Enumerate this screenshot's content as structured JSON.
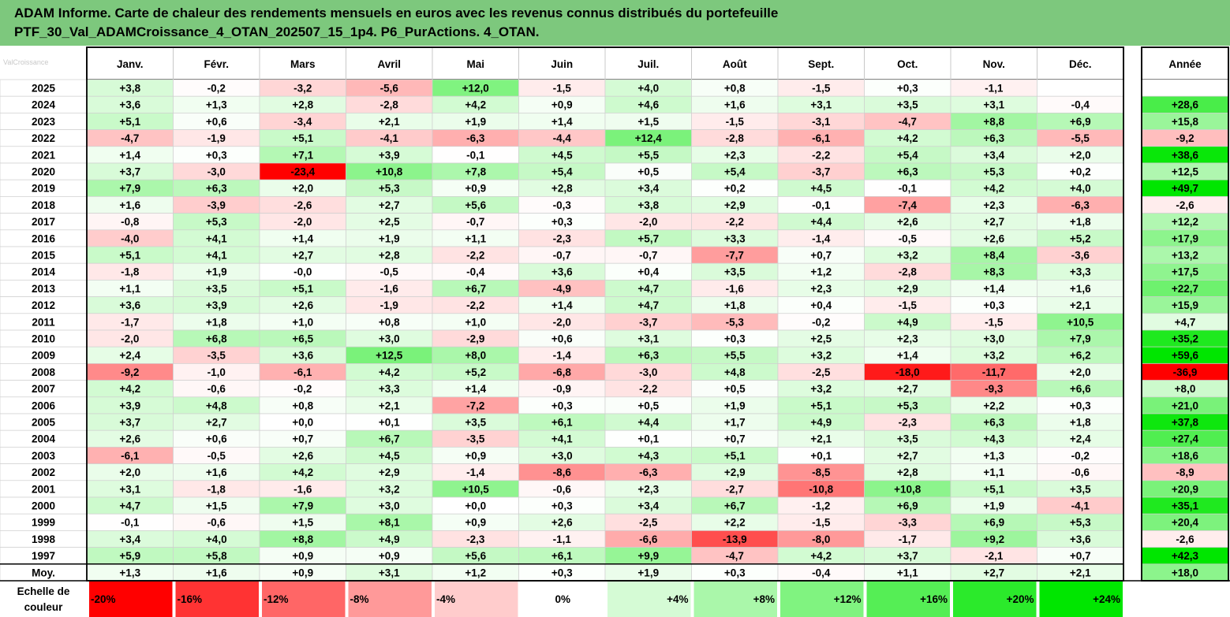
{
  "title": {
    "line1": "ADAM Informe. Carte de chaleur des rendements mensuels en euros avec les revenus connus distribués du portefeuille",
    "line2": "PTF_30_Val_ADAMCroissance_4_OTAN_202507_15_1p4. P6_PurActions. 4_OTAN."
  },
  "watermark": "ValCroissance",
  "colors": {
    "title_bg": "#7dc87d",
    "negative": "#ff0000",
    "positive": "#00e600",
    "neutral": "#ffffff"
  },
  "chart_data": {
    "type": "heatmap",
    "columns": [
      "Janv.",
      "Févr.",
      "Mars",
      "Avril",
      "Mai",
      "Juin",
      "Juil.",
      "Août",
      "Sept.",
      "Oct.",
      "Nov.",
      "Déc."
    ],
    "year_column": "Année",
    "rows": [
      {
        "label": "2025",
        "values": [
          "+3,8",
          "-0,2",
          "-3,2",
          "-5,6",
          "+12,0",
          "-1,5",
          "+4,0",
          "+0,8",
          "-1,5",
          "+0,3",
          "-1,1",
          ""
        ],
        "year": ""
      },
      {
        "label": "2024",
        "values": [
          "+3,6",
          "+1,3",
          "+2,8",
          "-2,8",
          "+4,2",
          "+0,9",
          "+4,6",
          "+1,6",
          "+3,1",
          "+3,5",
          "+3,1",
          "-0,4"
        ],
        "year": "+28,6"
      },
      {
        "label": "2023",
        "values": [
          "+5,1",
          "+0,6",
          "-3,4",
          "+2,1",
          "+1,9",
          "+1,4",
          "+1,5",
          "-1,5",
          "-3,1",
          "-4,7",
          "+8,8",
          "+6,9"
        ],
        "year": "+15,8"
      },
      {
        "label": "2022",
        "values": [
          "-4,7",
          "-1,9",
          "+5,1",
          "-4,1",
          "-6,3",
          "-4,4",
          "+12,4",
          "-2,8",
          "-6,1",
          "+4,2",
          "+6,3",
          "-5,5"
        ],
        "year": "-9,2"
      },
      {
        "label": "2021",
        "values": [
          "+1,4",
          "+0,3",
          "+7,1",
          "+3,9",
          "-0,1",
          "+4,5",
          "+5,5",
          "+2,3",
          "-2,2",
          "+5,4",
          "+3,4",
          "+2,0"
        ],
        "year": "+38,6"
      },
      {
        "label": "2020",
        "values": [
          "+3,7",
          "-3,0",
          "-23,4",
          "+10,8",
          "+7,8",
          "+5,4",
          "+0,5",
          "+5,4",
          "-3,7",
          "+6,3",
          "+5,3",
          "+0,2"
        ],
        "year": "+12,5"
      },
      {
        "label": "2019",
        "values": [
          "+7,9",
          "+6,3",
          "+2,0",
          "+5,3",
          "+0,9",
          "+2,8",
          "+3,4",
          "+0,2",
          "+4,5",
          "-0,1",
          "+4,2",
          "+4,0"
        ],
        "year": "+49,7"
      },
      {
        "label": "2018",
        "values": [
          "+1,6",
          "-3,9",
          "-2,6",
          "+2,7",
          "+5,6",
          "-0,3",
          "+3,8",
          "+2,9",
          "-0,1",
          "-7,4",
          "+2,3",
          "-6,3"
        ],
        "year": "-2,6"
      },
      {
        "label": "2017",
        "values": [
          "-0,8",
          "+5,3",
          "-2,0",
          "+2,5",
          "-0,7",
          "+0,3",
          "-2,0",
          "-2,2",
          "+4,4",
          "+2,6",
          "+2,7",
          "+1,8"
        ],
        "year": "+12,2"
      },
      {
        "label": "2016",
        "values": [
          "-4,0",
          "+4,1",
          "+1,4",
          "+1,9",
          "+1,1",
          "-2,3",
          "+5,7",
          "+3,3",
          "-1,4",
          "-0,5",
          "+2,6",
          "+5,2"
        ],
        "year": "+17,9"
      },
      {
        "label": "2015",
        "values": [
          "+5,1",
          "+4,1",
          "+2,7",
          "+2,8",
          "-2,2",
          "-0,7",
          "-0,7",
          "-7,7",
          "+0,7",
          "+3,2",
          "+8,4",
          "-3,6"
        ],
        "year": "+13,2"
      },
      {
        "label": "2014",
        "values": [
          "-1,8",
          "+1,9",
          "-0,0",
          "-0,5",
          "-0,4",
          "+3,6",
          "+0,4",
          "+3,5",
          "+1,2",
          "-2,8",
          "+8,3",
          "+3,3"
        ],
        "year": "+17,5"
      },
      {
        "label": "2013",
        "values": [
          "+1,1",
          "+3,5",
          "+5,1",
          "-1,6",
          "+6,7",
          "-4,9",
          "+4,7",
          "-1,6",
          "+2,3",
          "+2,9",
          "+1,4",
          "+1,6"
        ],
        "year": "+22,7"
      },
      {
        "label": "2012",
        "values": [
          "+3,6",
          "+3,9",
          "+2,6",
          "-1,9",
          "-2,2",
          "+1,4",
          "+4,7",
          "+1,8",
          "+0,4",
          "-1,5",
          "+0,3",
          "+2,1"
        ],
        "year": "+15,9"
      },
      {
        "label": "2011",
        "values": [
          "-1,7",
          "+1,8",
          "+1,0",
          "+0,8",
          "+1,0",
          "-2,0",
          "-3,7",
          "-5,3",
          "-0,2",
          "+4,9",
          "-1,5",
          "+10,5"
        ],
        "year": "+4,7"
      },
      {
        "label": "2010",
        "values": [
          "-2,0",
          "+6,8",
          "+6,5",
          "+3,0",
          "-2,9",
          "+0,6",
          "+3,1",
          "+0,3",
          "+2,5",
          "+2,3",
          "+3,0",
          "+7,9"
        ],
        "year": "+35,2"
      },
      {
        "label": "2009",
        "values": [
          "+2,4",
          "-3,5",
          "+3,6",
          "+12,5",
          "+8,0",
          "-1,4",
          "+6,3",
          "+5,5",
          "+3,2",
          "+1,4",
          "+3,2",
          "+6,2"
        ],
        "year": "+59,6"
      },
      {
        "label": "2008",
        "values": [
          "-9,2",
          "-1,0",
          "-6,1",
          "+4,2",
          "+5,2",
          "-6,8",
          "-3,0",
          "+4,8",
          "-2,5",
          "-18,0",
          "-11,7",
          "+2,0"
        ],
        "year": "-36,9"
      },
      {
        "label": "2007",
        "values": [
          "+4,2",
          "-0,6",
          "-0,2",
          "+3,3",
          "+1,4",
          "-0,9",
          "-2,2",
          "+0,5",
          "+3,2",
          "+2,7",
          "-9,3",
          "+6,6"
        ],
        "year": "+8,0"
      },
      {
        "label": "2006",
        "values": [
          "+3,9",
          "+4,8",
          "+0,8",
          "+2,1",
          "-7,2",
          "+0,3",
          "+0,5",
          "+1,9",
          "+5,1",
          "+5,3",
          "+2,2",
          "+0,3"
        ],
        "year": "+21,0"
      },
      {
        "label": "2005",
        "values": [
          "+3,7",
          "+2,7",
          "+0,0",
          "+0,1",
          "+3,5",
          "+6,1",
          "+4,4",
          "+1,7",
          "+4,9",
          "-2,3",
          "+6,3",
          "+1,8"
        ],
        "year": "+37,8"
      },
      {
        "label": "2004",
        "values": [
          "+2,6",
          "+0,6",
          "+0,7",
          "+6,7",
          "-3,5",
          "+4,1",
          "+0,1",
          "+0,7",
          "+2,1",
          "+3,5",
          "+4,3",
          "+2,4"
        ],
        "year": "+27,4"
      },
      {
        "label": "2003",
        "values": [
          "-6,1",
          "-0,5",
          "+2,6",
          "+4,5",
          "+0,9",
          "+3,0",
          "+4,3",
          "+5,1",
          "+0,1",
          "+2,7",
          "+1,3",
          "-0,2"
        ],
        "year": "+18,6"
      },
      {
        "label": "2002",
        "values": [
          "+2,0",
          "+1,6",
          "+4,2",
          "+2,9",
          "-1,4",
          "-8,6",
          "-6,3",
          "+2,9",
          "-8,5",
          "+2,8",
          "+1,1",
          "-0,6"
        ],
        "year": "-8,9"
      },
      {
        "label": "2001",
        "values": [
          "+3,1",
          "-1,8",
          "-1,6",
          "+3,2",
          "+10,5",
          "-0,6",
          "+2,3",
          "-2,7",
          "-10,8",
          "+10,8",
          "+5,1",
          "+3,5"
        ],
        "year": "+20,9"
      },
      {
        "label": "2000",
        "values": [
          "+4,7",
          "+1,5",
          "+7,9",
          "+3,0",
          "+0,0",
          "+0,3",
          "+3,4",
          "+6,7",
          "-1,2",
          "+6,9",
          "+1,9",
          "-4,1"
        ],
        "year": "+35,1"
      },
      {
        "label": "1999",
        "values": [
          "-0,1",
          "-0,6",
          "+1,5",
          "+8,1",
          "+0,9",
          "+2,6",
          "-2,5",
          "+2,2",
          "-1,5",
          "-3,3",
          "+6,9",
          "+5,3"
        ],
        "year": "+20,4"
      },
      {
        "label": "1998",
        "values": [
          "+3,4",
          "+4,0",
          "+8,8",
          "+4,9",
          "-2,3",
          "-1,1",
          "-6,6",
          "-13,9",
          "-8,0",
          "-1,7",
          "+9,2",
          "+3,6"
        ],
        "year": "-2,6"
      },
      {
        "label": "1997",
        "values": [
          "+5,9",
          "+5,8",
          "+0,9",
          "+0,9",
          "+5,6",
          "+6,1",
          "+9,9",
          "-4,7",
          "+4,2",
          "+3,7",
          "-2,1",
          "+0,7"
        ],
        "year": "+42,3"
      },
      {
        "label": "Moy.",
        "values": [
          "+1,3",
          "+1,6",
          "+0,9",
          "+3,1",
          "+1,2",
          "+0,3",
          "+1,9",
          "+0,3",
          "-0,4",
          "+1,1",
          "+2,7",
          "+2,1"
        ],
        "year": "+18,0"
      }
    ],
    "scale_label": [
      "Echelle de",
      "couleur"
    ],
    "scale": [
      "-20%",
      "-16%",
      "-12%",
      "-8%",
      "-4%",
      "0%",
      "+4%",
      "+8%",
      "+12%",
      "+16%",
      "+20%",
      "+24%"
    ]
  }
}
